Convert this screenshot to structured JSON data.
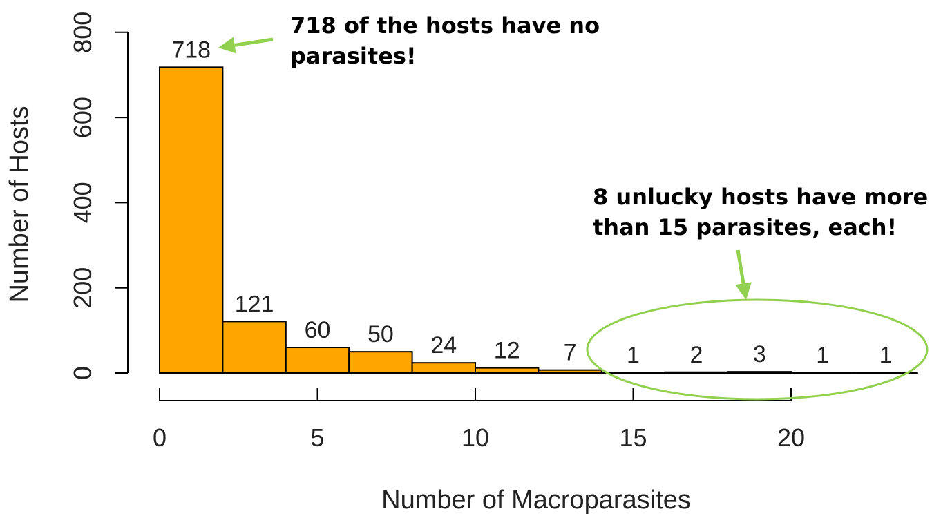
{
  "chart_data": {
    "type": "bar",
    "subtype": "histogram",
    "bin_width": 2,
    "bin_edges": [
      0,
      2,
      4,
      6,
      8,
      10,
      12,
      14,
      16,
      18,
      20,
      22,
      24
    ],
    "values": [
      718,
      121,
      60,
      50,
      24,
      12,
      7,
      1,
      2,
      3,
      1,
      1
    ],
    "data_labels": [
      "718",
      "121",
      "60",
      "50",
      "24",
      "12",
      "7",
      "1",
      "2",
      "3",
      "1",
      "1"
    ],
    "xlabel": "Number of Macroparasites",
    "ylabel": "Number of Hosts",
    "xlim": [
      0,
      24
    ],
    "ylim": [
      0,
      800
    ],
    "x_ticks": [
      0,
      5,
      10,
      15,
      20
    ],
    "x_tick_labels": [
      "0",
      "5",
      "10",
      "15",
      "20"
    ],
    "y_ticks": [
      0,
      200,
      400,
      600,
      800
    ],
    "y_tick_labels": [
      "0",
      "200",
      "400",
      "600",
      "800"
    ],
    "bar_color": "#FFA500",
    "grid": false,
    "annotations": [
      {
        "lines": [
          "718 of the hosts have no",
          "parasites!"
        ],
        "points_to_bin": 0
      },
      {
        "lines": [
          "8 unlucky hosts have more",
          "than 15 parasites, each!"
        ],
        "highlights_bins_from_x": 14
      }
    ],
    "annotation_color": "#92D050"
  }
}
